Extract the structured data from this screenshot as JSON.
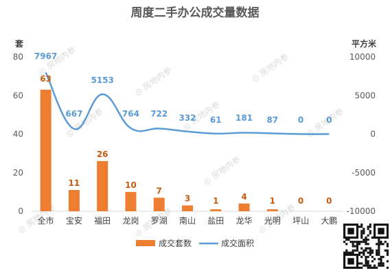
{
  "chart_data": {
    "type": "bar",
    "title": "周度二手办公成交量数据",
    "y_left_unit": "套",
    "y_right_unit": "平方米",
    "categories": [
      "全市",
      "宝安",
      "福田",
      "龙岗",
      "罗湖",
      "南山",
      "盐田",
      "龙华",
      "光明",
      "坪山",
      "大鹏"
    ],
    "left_axis": {
      "min": 0,
      "max": 80,
      "ticks": [
        "80",
        "60",
        "40",
        "20",
        "0"
      ]
    },
    "right_axis": {
      "min": -10000,
      "max": 10000,
      "ticks": [
        "10000",
        "5000",
        "0",
        "-5000",
        "-10000"
      ]
    },
    "series": [
      {
        "name": "成交套数",
        "type": "bar",
        "axis": "left",
        "color": "#ed7d31",
        "values": [
          63,
          11,
          26,
          10,
          7,
          3,
          1,
          4,
          1,
          0,
          0
        ],
        "labels": [
          "63",
          "11",
          "26",
          "10",
          "7",
          "3",
          "1",
          "4",
          "1",
          "0",
          "0"
        ]
      },
      {
        "name": "成交面积",
        "type": "line",
        "axis": "right",
        "color": "#5b9bd5",
        "values": [
          7967,
          667,
          5153,
          764,
          722,
          332,
          61,
          181,
          87,
          0,
          0
        ],
        "labels": [
          "7967",
          "667",
          "5153",
          "764",
          "722",
          "332",
          "61",
          "181",
          "87",
          "0",
          "0"
        ]
      }
    ],
    "legend_position": "bottom",
    "grid": false
  },
  "watermark": "房地内参",
  "qr_code": "qr-code-icon"
}
